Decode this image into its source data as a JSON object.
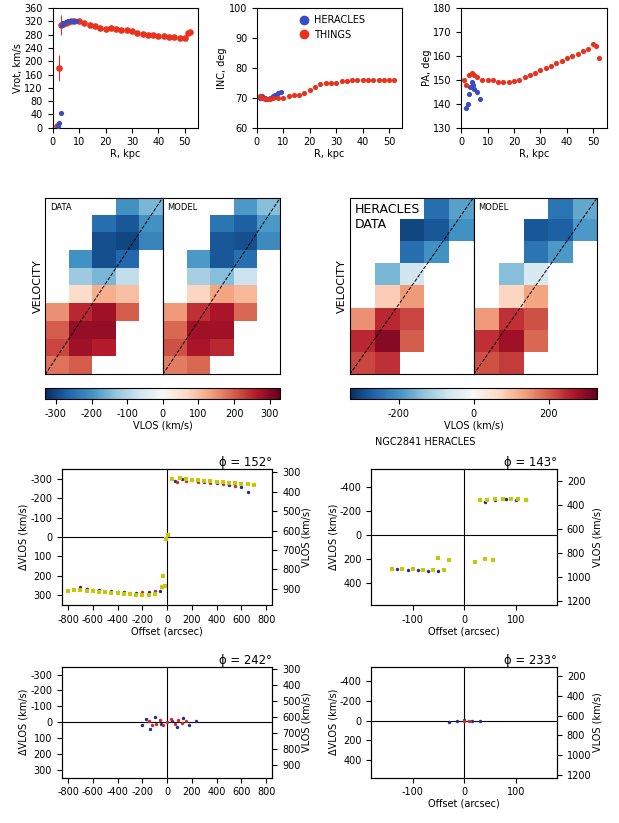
{
  "chart_data": [
    {
      "type": "scatter",
      "xlabel": "R, kpc",
      "ylabel": "Vrot, km/s",
      "xlim": [
        0,
        55
      ],
      "xticks": [
        0,
        10,
        20,
        30,
        40,
        50
      ],
      "ylim": [
        0,
        360
      ],
      "yticks": [
        0,
        40,
        80,
        120,
        160,
        200,
        240,
        280,
        320,
        360
      ],
      "series": [
        {
          "name": "HERACLES",
          "color": "#3b4cc0",
          "marker": "o",
          "x": [
            2.0,
            2.5,
            3.0,
            3.5,
            4.0,
            5.0,
            6.0,
            7.0,
            8.0,
            9.0
          ],
          "values": [
            5,
            15,
            45,
            310,
            315,
            318,
            320,
            320,
            322,
            322
          ]
        },
        {
          "name": "THINGS",
          "color": "#e8321e",
          "marker": "o",
          "x": [
            1.5,
            2.5,
            3,
            4,
            5,
            6,
            7,
            8,
            10,
            12,
            14,
            16,
            18,
            20,
            22,
            24,
            26,
            28,
            30,
            32,
            34,
            36,
            38,
            40,
            42,
            44,
            46,
            48,
            50,
            51,
            52
          ],
          "values": [
            5,
            180,
            310,
            312,
            315,
            318,
            320,
            322,
            320,
            315,
            310,
            305,
            300,
            298,
            300,
            296,
            295,
            293,
            290,
            285,
            282,
            280,
            278,
            277,
            275,
            273,
            272,
            270,
            270,
            285,
            288
          ],
          "errors": [
            3,
            40,
            30,
            5,
            5,
            5,
            5,
            5,
            5,
            5,
            5,
            5,
            5,
            5,
            5,
            5,
            5,
            5,
            5,
            5,
            5,
            5,
            5,
            5,
            5,
            5,
            5,
            5,
            5,
            5,
            5
          ]
        }
      ]
    },
    {
      "type": "scatter",
      "xlabel": "R, kpc",
      "ylabel": "INC, deg",
      "legend": "upper center",
      "xlim": [
        0,
        55
      ],
      "xticks": [
        0,
        10,
        20,
        30,
        40,
        50
      ],
      "ylim": [
        60,
        100
      ],
      "yticks": [
        60,
        70,
        80,
        90,
        100
      ],
      "series": [
        {
          "name": "HERACLES",
          "color": "#3b4cc0",
          "marker": "o",
          "x": [
            1,
            2,
            3,
            4,
            5,
            6,
            7,
            8,
            9
          ],
          "values": [
            70,
            70.5,
            70,
            69.5,
            70,
            70.5,
            71,
            71.5,
            72
          ]
        },
        {
          "name": "THINGS",
          "color": "#e8321e",
          "marker": "o",
          "x": [
            1,
            2,
            3,
            4,
            5,
            6,
            8,
            10,
            12,
            14,
            16,
            18,
            20,
            22,
            24,
            26,
            28,
            30,
            32,
            34,
            36,
            38,
            40,
            42,
            44,
            46,
            48,
            50,
            52
          ],
          "values": [
            70.5,
            70,
            69.5,
            69.5,
            69.5,
            70,
            70,
            70,
            70.5,
            71,
            71,
            71.5,
            72.5,
            73.5,
            74.5,
            75,
            75,
            75,
            75.5,
            75.5,
            76,
            76,
            76,
            76,
            76,
            76,
            76,
            76,
            76
          ]
        }
      ]
    },
    {
      "type": "scatter",
      "xlabel": "R, kpc",
      "ylabel": "PA, deg",
      "xlim": [
        0,
        55
      ],
      "xticks": [
        0,
        10,
        20,
        30,
        40,
        50
      ],
      "ylim": [
        130,
        180
      ],
      "yticks": [
        130,
        140,
        150,
        160,
        170,
        180
      ],
      "series": [
        {
          "name": "HERACLES",
          "color": "#3b4cc0",
          "marker": "o",
          "x": [
            2,
            2.5,
            3,
            3.5,
            4,
            4.5,
            5,
            6,
            7
          ],
          "values": [
            138,
            140,
            144,
            147,
            149,
            148,
            146,
            145,
            142
          ]
        },
        {
          "name": "THINGS",
          "color": "#e8321e",
          "marker": "o",
          "x": [
            1,
            2,
            3,
            4,
            5,
            6,
            8,
            10,
            12,
            14,
            16,
            18,
            20,
            22,
            24,
            26,
            28,
            30,
            32,
            34,
            36,
            38,
            40,
            42,
            44,
            46,
            48,
            50,
            51,
            52
          ],
          "values": [
            150,
            148,
            152,
            153,
            152,
            151,
            150,
            150,
            150,
            149,
            149,
            149,
            149.5,
            150,
            151,
            152,
            153,
            154,
            155,
            156,
            157,
            158,
            159,
            160,
            161,
            162,
            163,
            165,
            164,
            159
          ]
        }
      ]
    },
    {
      "type": "heatmap",
      "ylabel": "VELOCITY",
      "text": "DATA",
      "tick_labels": false,
      "colorbar_range": [
        -330,
        330
      ],
      "colorbar_ticks": [
        -300,
        -200,
        -100,
        0,
        100,
        200,
        300
      ],
      "colorbar_label": "VLOS (km/s)",
      "cells": [
        [
          null,
          null,
          null,
          -200,
          -150
        ],
        [
          null,
          null,
          -250,
          -280,
          -200
        ],
        [
          null,
          null,
          -290,
          -300,
          -220
        ],
        [
          null,
          -200,
          -290,
          -260,
          null
        ],
        [
          null,
          -120,
          -150,
          -80,
          null
        ],
        [
          null,
          60,
          120,
          100,
          null
        ],
        [
          150,
          250,
          280,
          200,
          null
        ],
        [
          200,
          290,
          290,
          null,
          null
        ],
        [
          220,
          280,
          260,
          null,
          null
        ],
        [
          180,
          200,
          null,
          null,
          null
        ]
      ]
    },
    {
      "type": "heatmap",
      "text": "MODEL",
      "tick_labels": false,
      "colorbar_range": [
        -330,
        330
      ],
      "cells": [
        [
          null,
          null,
          null,
          -190,
          -140
        ],
        [
          null,
          null,
          -240,
          -270,
          -190
        ],
        [
          null,
          null,
          -280,
          -290,
          -210
        ],
        [
          null,
          -190,
          -280,
          -250,
          null
        ],
        [
          null,
          -110,
          -140,
          -70,
          null
        ],
        [
          null,
          70,
          130,
          110,
          null
        ],
        [
          140,
          240,
          270,
          190,
          null
        ],
        [
          190,
          280,
          280,
          null,
          null
        ],
        [
          210,
          270,
          250,
          null,
          null
        ],
        [
          170,
          190,
          null,
          null,
          null
        ]
      ]
    },
    {
      "type": "heatmap",
      "ylabel": "VELOCITY",
      "text": "HERACLES\nDATA",
      "tick_labels": false,
      "colorbar_range": [
        -330,
        330
      ],
      "colorbar_ticks": [
        -200,
        0,
        200
      ],
      "colorbar_label": "VLOS (km/s)",
      "cells": [
        [
          null,
          null,
          null,
          -250,
          -180
        ],
        [
          null,
          null,
          -300,
          -280,
          -200
        ],
        [
          null,
          null,
          -250,
          -200,
          null
        ],
        [
          null,
          -150,
          -60,
          null,
          null
        ],
        [
          null,
          80,
          140,
          null,
          null
        ],
        [
          150,
          250,
          220,
          null,
          null
        ],
        [
          250,
          300,
          200,
          null,
          null
        ],
        [
          220,
          240,
          null,
          null,
          null
        ]
      ]
    },
    {
      "type": "heatmap",
      "text": "MODEL",
      "tick_labels": false,
      "colorbar_range": [
        -330,
        330
      ],
      "cells": [
        [
          null,
          null,
          null,
          -240,
          -170
        ],
        [
          null,
          null,
          -280,
          -270,
          -190
        ],
        [
          null,
          null,
          -240,
          -190,
          null
        ],
        [
          null,
          -140,
          -50,
          null,
          null
        ],
        [
          null,
          70,
          130,
          null,
          null
        ],
        [
          140,
          240,
          210,
          null,
          null
        ],
        [
          240,
          280,
          190,
          null,
          null
        ],
        [
          210,
          230,
          null,
          null,
          null
        ]
      ]
    },
    {
      "type": "scatter",
      "title": "ϕ = 152°",
      "xlabel": "Offset (arcsec)",
      "ylabel": "ΔVLOS (km/s)",
      "y2label": "VLOS (km/s)",
      "xlim": [
        -850,
        850
      ],
      "xticks": [
        -800,
        -600,
        -400,
        -200,
        0,
        200,
        400,
        600,
        800
      ],
      "ylim": [
        350,
        -350
      ],
      "yticks": [
        -300,
        -200,
        -100,
        0,
        100,
        200,
        300
      ],
      "y2lim": [
        983,
        283
      ],
      "y2ticks": [
        300,
        400,
        500,
        600,
        700,
        800,
        900
      ],
      "series": [
        {
          "color": "#1f2f8f",
          "marker": "o",
          "x": [
            60,
            120,
            200,
            300,
            400,
            500,
            600,
            650,
            -60,
            -150,
            -250,
            -350,
            -450,
            -550,
            -650,
            -700
          ],
          "values": [
            -290,
            -300,
            -295,
            -285,
            -280,
            -270,
            -260,
            -230,
            280,
            285,
            290,
            285,
            280,
            275,
            270,
            260
          ]
        },
        {
          "color": "#d62728",
          "marker": "o",
          "x": [
            80,
            150,
            250,
            350,
            450,
            550,
            -100,
            -200,
            -300,
            -400,
            -500,
            -600
          ],
          "values": [
            -285,
            -290,
            -285,
            -280,
            -275,
            -265,
            280,
            285,
            288,
            283,
            278,
            272
          ]
        },
        {
          "color": "#c8c800",
          "marker": "s",
          "x": [
            40,
            100,
            150,
            200,
            250,
            300,
            350,
            400,
            450,
            500,
            550,
            600,
            650,
            700,
            -20,
            -10,
            10,
            -30,
            -40,
            -100,
            -150,
            -200,
            -250,
            -300,
            -350,
            -400,
            -450,
            -500,
            -550,
            -600,
            -650,
            -700,
            -750,
            -800
          ],
          "values": [
            -300,
            -305,
            -300,
            -295,
            -295,
            -290,
            -288,
            -285,
            -283,
            -280,
            -278,
            -275,
            -272,
            -270,
            250,
            10,
            -10,
            200,
            260,
            295,
            300,
            300,
            298,
            295,
            292,
            290,
            288,
            285,
            282,
            280,
            278,
            275,
            272,
            280
          ]
        }
      ]
    },
    {
      "type": "scatter",
      "title": "ϕ = 143°",
      "subtitle": "NGC2841 HERACLES",
      "xlabel": "Offset (arcsec)",
      "ylabel": "ΔVLOS (km/s)",
      "y2label": "VLOS (km/s)",
      "xlim": [
        -180,
        180
      ],
      "xticks": [
        -100,
        0,
        100
      ],
      "ylim": [
        580,
        -550
      ],
      "yticks": [
        -400,
        -200,
        0,
        200,
        400
      ],
      "y2lim": [
        1230,
        100
      ],
      "y2ticks": [
        200,
        400,
        600,
        800,
        1000,
        1200
      ],
      "series": [
        {
          "color": "#1f2f8f",
          "marker": "o",
          "x": [
            40,
            60,
            80,
            100,
            120,
            -50,
            -70,
            -90,
            -110,
            -130
          ],
          "values": [
            -280,
            -290,
            -300,
            -295,
            -290,
            300,
            295,
            290,
            288,
            285
          ]
        },
        {
          "color": "#c8c800",
          "marker": "s",
          "x": [
            30,
            45,
            60,
            75,
            90,
            105,
            120,
            -40,
            -60,
            -80,
            -100,
            -120,
            -140,
            -50,
            -30,
            20,
            40,
            55
          ],
          "values": [
            -290,
            -295,
            -300,
            -300,
            -305,
            -300,
            -295,
            290,
            290,
            288,
            285,
            283,
            280,
            190,
            210,
            220,
            200,
            205
          ]
        }
      ]
    },
    {
      "type": "scatter",
      "title": "ϕ = 242°",
      "ylabel": "ΔVLOS (km/s)",
      "y2label": "VLOS (km/s)",
      "xlim": [
        -850,
        850
      ],
      "xticks": [
        -800,
        -600,
        -400,
        -200,
        0,
        200,
        400,
        600,
        800
      ],
      "ylim": [
        350,
        -350
      ],
      "yticks": [
        -300,
        -200,
        -100,
        0,
        100,
        200,
        300
      ],
      "y2lim": [
        983,
        283
      ],
      "y2ticks": [
        300,
        400,
        500,
        600,
        700,
        800,
        900
      ],
      "series": [
        {
          "color": "#1f2f8f",
          "marker": "o",
          "x": [
            -200,
            -170,
            -140,
            -100,
            -50,
            40,
            80,
            130,
            180,
            230
          ],
          "values": [
            20,
            -20,
            40,
            -30,
            10,
            -10,
            30,
            -25,
            15,
            -5
          ]
        },
        {
          "color": "#d62728",
          "marker": "o",
          "x": [
            -150,
            -120,
            -90,
            -60,
            -30,
            0,
            30,
            60,
            90,
            120,
            150
          ],
          "values": [
            -10,
            20,
            10,
            -15,
            15,
            0,
            -20,
            10,
            -15,
            5,
            -5
          ]
        }
      ]
    },
    {
      "type": "scatter",
      "title": "ϕ = 233°",
      "xlabel": "Offset (arcsec)",
      "ylabel": "ΔVLOS (km/s)",
      "y2label": "VLOS (km/s)",
      "xlim": [
        -180,
        180
      ],
      "xticks": [
        -100,
        0,
        100
      ],
      "ylim": [
        580,
        -550
      ],
      "yticks": [
        -400,
        -200,
        0,
        200,
        400
      ],
      "y2lim": [
        1230,
        100
      ],
      "y2ticks": [
        200,
        400,
        600,
        800,
        1000,
        1200
      ],
      "series": [
        {
          "color": "#1f2f8f",
          "marker": "o",
          "x": [
            -30,
            -15,
            0,
            15,
            30
          ],
          "values": [
            10,
            0,
            -5,
            5,
            0
          ]
        },
        {
          "color": "#d62728",
          "marker": "o",
          "x": [
            0,
            10
          ],
          "values": [
            0,
            5
          ]
        }
      ]
    }
  ]
}
